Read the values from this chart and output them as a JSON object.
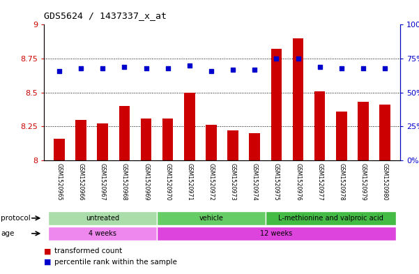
{
  "title": "GDS5624 / 1437337_x_at",
  "samples": [
    "GSM1520965",
    "GSM1520966",
    "GSM1520967",
    "GSM1520968",
    "GSM1520969",
    "GSM1520970",
    "GSM1520971",
    "GSM1520972",
    "GSM1520973",
    "GSM1520974",
    "GSM1520975",
    "GSM1520976",
    "GSM1520977",
    "GSM1520978",
    "GSM1520979",
    "GSM1520980"
  ],
  "bar_values": [
    8.16,
    8.3,
    8.27,
    8.4,
    8.31,
    8.31,
    8.5,
    8.26,
    8.22,
    8.2,
    8.82,
    8.9,
    8.51,
    8.36,
    8.43,
    8.41
  ],
  "dot_values": [
    66,
    68,
    68,
    69,
    68,
    68,
    70,
    66,
    67,
    67,
    75,
    75,
    69,
    68,
    68,
    68
  ],
  "bar_color": "#cc0000",
  "dot_color": "#0000cc",
  "ylim_left": [
    8.0,
    9.0
  ],
  "ylim_right": [
    0,
    100
  ],
  "yticks_left": [
    8.0,
    8.25,
    8.5,
    8.75,
    9.0
  ],
  "yticks_right": [
    0,
    25,
    50,
    75,
    100
  ],
  "ytick_labels_left": [
    "8",
    "8.25",
    "8.5",
    "8.75",
    "9"
  ],
  "ytick_labels_right": [
    "0%",
    "25%",
    "50%",
    "75%",
    "100%"
  ],
  "grid_values": [
    8.25,
    8.5,
    8.75
  ],
  "protocol_groups": [
    {
      "label": "untreated",
      "start": 0,
      "end": 4,
      "color": "#aaddaa"
    },
    {
      "label": "vehicle",
      "start": 5,
      "end": 9,
      "color": "#66cc66"
    },
    {
      "label": "L-methionine and valproic acid",
      "start": 10,
      "end": 15,
      "color": "#44bb44"
    }
  ],
  "age_groups": [
    {
      "label": "4 weeks",
      "start": 0,
      "end": 4,
      "color": "#ee88ee"
    },
    {
      "label": "12 weeks",
      "start": 5,
      "end": 15,
      "color": "#dd44dd"
    }
  ],
  "legend_items": [
    {
      "color": "#cc0000",
      "label": "transformed count"
    },
    {
      "color": "#0000cc",
      "label": "percentile rank within the sample"
    }
  ],
  "bar_width": 0.5,
  "ylabel_left_color": "#cc0000",
  "ylabel_right_color": "#0000cc",
  "label_area_color": "#cccccc",
  "xdata_min": -0.7,
  "xdata_max": 15.7
}
